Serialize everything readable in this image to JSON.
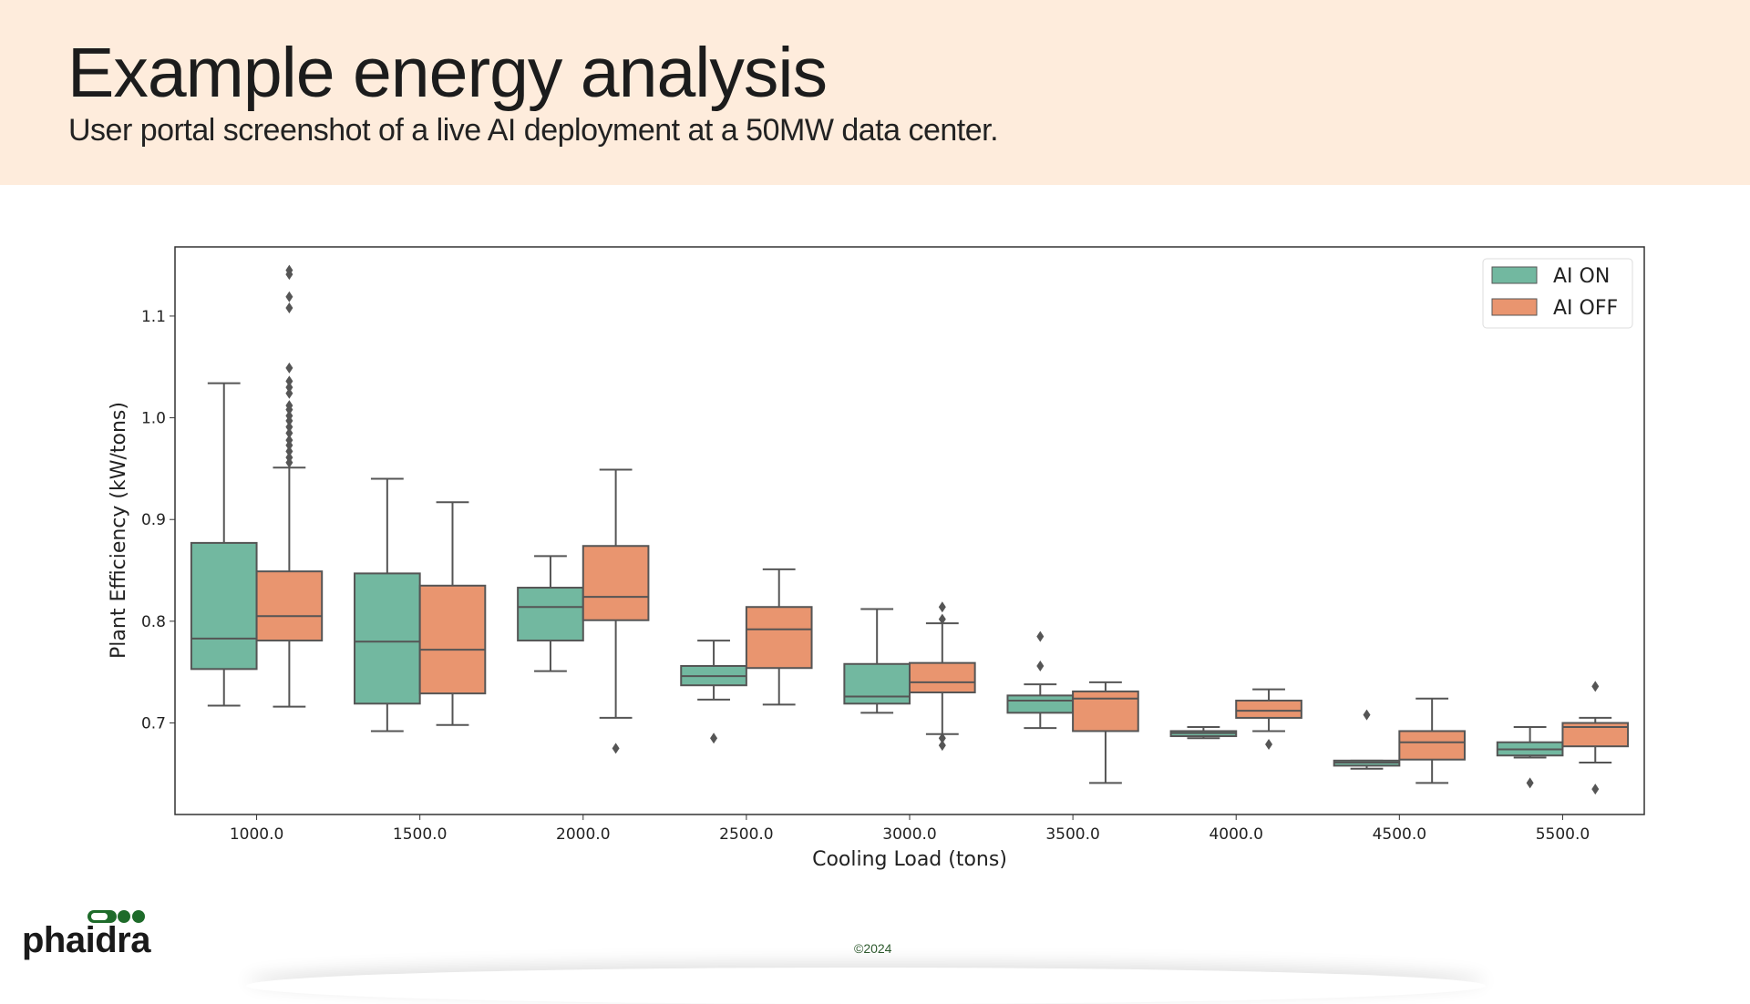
{
  "header": {
    "title": "Example energy analysis",
    "subtitle": "User portal screenshot of a live AI deployment at a 50MW data center."
  },
  "footer": {
    "logo_text": "phaidra",
    "copyright": "©2024",
    "logo_color": "#1e6b2a"
  },
  "chart_data": {
    "type": "box",
    "xlabel": "Cooling Load (tons)",
    "ylabel": "Plant Efficiency (kW/tons)",
    "categories": [
      "1000.0",
      "1500.0",
      "2000.0",
      "2500.0",
      "3000.0",
      "3500.0",
      "4000.0",
      "4500.0",
      "5500.0"
    ],
    "yticks": [
      "0.7",
      "0.8",
      "0.9",
      "1.0",
      "1.1"
    ],
    "ylim": [
      0.61,
      1.168
    ],
    "grid": false,
    "legend_position": "top-right",
    "series": [
      {
        "name": "AI ON",
        "color": "#72b8a0",
        "boxes": [
          {
            "whislo": 0.717,
            "q1": 0.753,
            "med": 0.783,
            "q3": 0.877,
            "whishi": 1.034,
            "fliers": []
          },
          {
            "whislo": 0.692,
            "q1": 0.719,
            "med": 0.78,
            "q3": 0.847,
            "whishi": 0.94,
            "fliers": []
          },
          {
            "whislo": 0.751,
            "q1": 0.781,
            "med": 0.814,
            "q3": 0.833,
            "whishi": 0.864,
            "fliers": []
          },
          {
            "whislo": 0.723,
            "q1": 0.737,
            "med": 0.746,
            "q3": 0.756,
            "whishi": 0.781,
            "fliers": [
              0.685
            ]
          },
          {
            "whislo": 0.71,
            "q1": 0.719,
            "med": 0.726,
            "q3": 0.758,
            "whishi": 0.812,
            "fliers": []
          },
          {
            "whislo": 0.695,
            "q1": 0.71,
            "med": 0.722,
            "q3": 0.727,
            "whishi": 0.738,
            "fliers": [
              0.756,
              0.785
            ]
          },
          {
            "whislo": 0.685,
            "q1": 0.687,
            "med": 0.69,
            "q3": 0.692,
            "whishi": 0.696,
            "fliers": []
          },
          {
            "whislo": 0.655,
            "q1": 0.658,
            "med": 0.661,
            "q3": 0.663,
            "whishi": 0.663,
            "fliers": [
              0.708
            ]
          },
          {
            "whislo": 0.666,
            "q1": 0.668,
            "med": 0.674,
            "q3": 0.681,
            "whishi": 0.696,
            "fliers": [
              0.641
            ]
          }
        ]
      },
      {
        "name": "AI OFF",
        "color": "#e9956f",
        "boxes": [
          {
            "whislo": 0.716,
            "q1": 0.781,
            "med": 0.805,
            "q3": 0.849,
            "whishi": 0.951,
            "fliers": [
              0.956,
              0.961,
              0.967,
              0.973,
              0.978,
              0.985,
              0.991,
              0.997,
              1.002,
              1.008,
              1.012,
              1.024,
              1.03,
              1.036,
              1.049,
              1.108,
              1.119,
              1.141,
              1.145
            ]
          },
          {
            "whislo": 0.698,
            "q1": 0.729,
            "med": 0.772,
            "q3": 0.835,
            "whishi": 0.917,
            "fliers": []
          },
          {
            "whislo": 0.705,
            "q1": 0.801,
            "med": 0.824,
            "q3": 0.874,
            "whishi": 0.949,
            "fliers": [
              0.675
            ]
          },
          {
            "whislo": 0.718,
            "q1": 0.754,
            "med": 0.792,
            "q3": 0.814,
            "whishi": 0.851,
            "fliers": []
          },
          {
            "whislo": 0.689,
            "q1": 0.73,
            "med": 0.74,
            "q3": 0.759,
            "whishi": 0.798,
            "fliers": [
              0.678,
              0.685,
              0.802,
              0.814
            ]
          },
          {
            "whislo": 0.641,
            "q1": 0.692,
            "med": 0.724,
            "q3": 0.731,
            "whishi": 0.74,
            "fliers": []
          },
          {
            "whislo": 0.692,
            "q1": 0.705,
            "med": 0.712,
            "q3": 0.722,
            "whishi": 0.733,
            "fliers": [
              0.679
            ]
          },
          {
            "whislo": 0.641,
            "q1": 0.664,
            "med": 0.681,
            "q3": 0.692,
            "whishi": 0.724,
            "fliers": []
          },
          {
            "whislo": 0.661,
            "q1": 0.677,
            "med": 0.696,
            "q3": 0.7,
            "whishi": 0.705,
            "fliers": [
              0.635,
              0.736
            ]
          }
        ]
      }
    ]
  }
}
